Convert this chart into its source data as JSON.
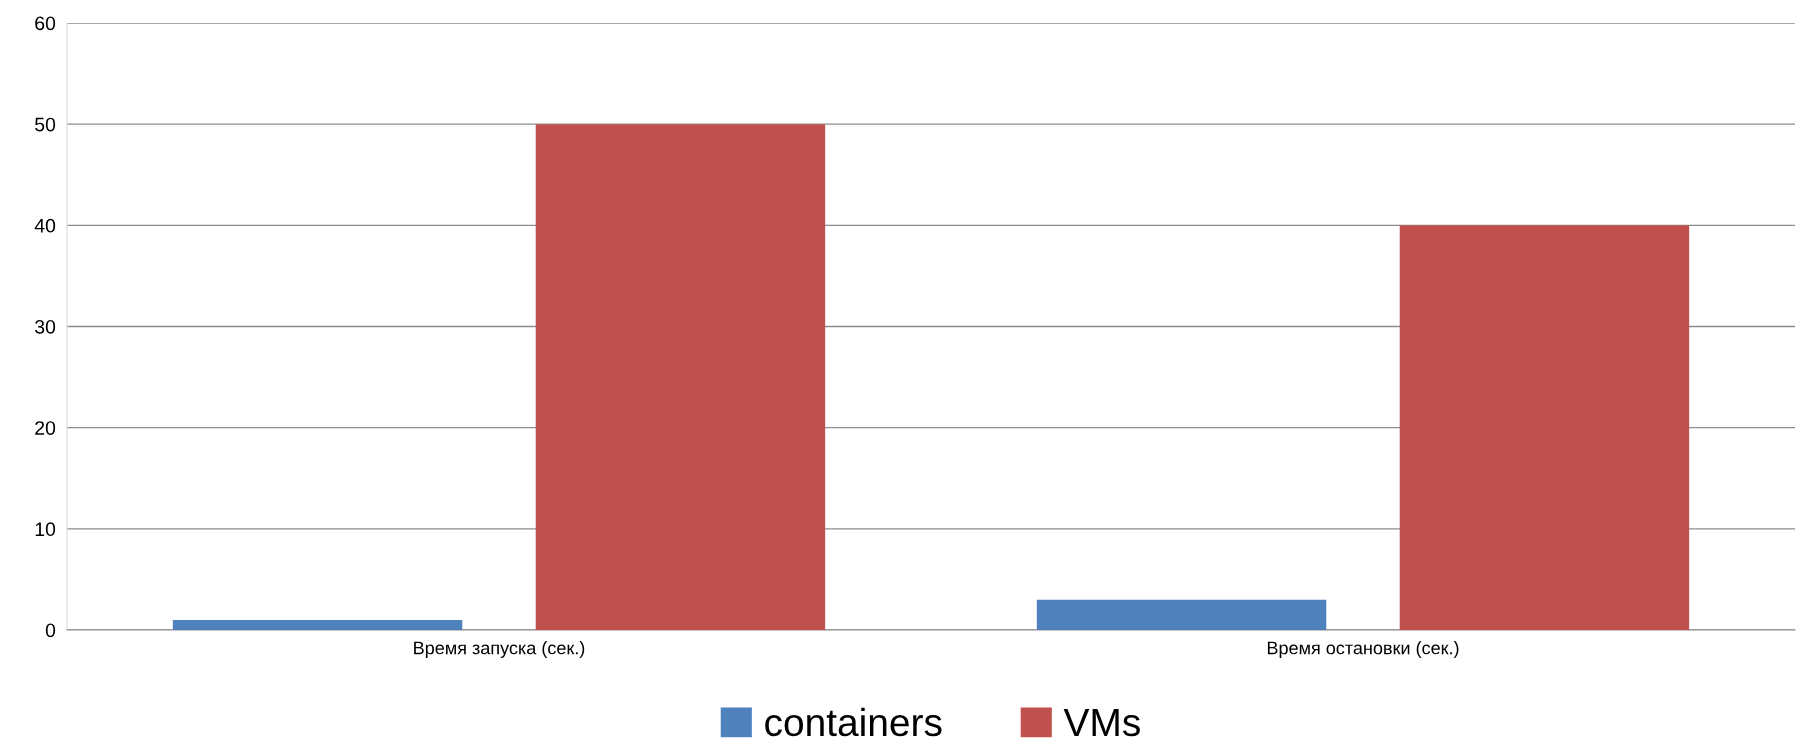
{
  "chart_data": {
    "type": "bar",
    "categories": [
      "Время запуска (сек.)",
      "Время остановки (сек.)"
    ],
    "series": [
      {
        "name": "containers",
        "color": "#4f81bd",
        "values": [
          1,
          3
        ]
      },
      {
        "name": "VMs",
        "color": "#c0504d",
        "values": [
          50,
          40
        ]
      }
    ],
    "ylim": [
      0,
      60
    ],
    "yticks": [
      0,
      10,
      20,
      30,
      40,
      50,
      60
    ],
    "grid": "y",
    "legend": "bottom"
  }
}
